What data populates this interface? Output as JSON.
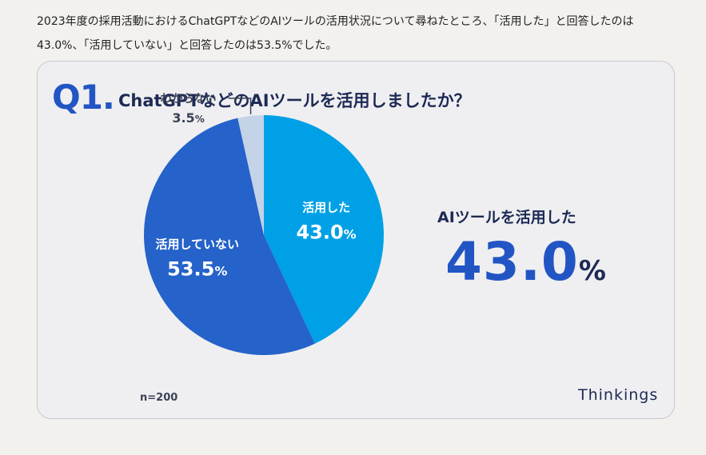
{
  "intro_text": "2023年度の採用活動におけるChatGPTなどのAIツールの活用状況について尋ねたところ、「活用した」と回答したのは43.0%、「活用していない」と回答したのは53.5%でした。",
  "question": {
    "number": "Q1.",
    "text": "ChatGPTなどのAIツールを活用しましたか？"
  },
  "highlight": {
    "label": "AIツールを活用した",
    "value": "43.0",
    "unit": "%"
  },
  "sample": "n=200",
  "brand": "Thinkings",
  "colors": {
    "used": "#00a0e6",
    "not_used": "#2562c9",
    "unknown": "#c5d3e8",
    "accent": "#2255c4",
    "navy": "#1d2a55"
  },
  "chart_data": {
    "type": "pie",
    "title": "ChatGPTなどのAIツールを活用しましたか？",
    "slices": [
      {
        "label": "活用した",
        "value": 43.0,
        "display": "43.0",
        "color": "#00a0e6"
      },
      {
        "label": "活用していない",
        "value": 53.5,
        "display": "53.5",
        "color": "#2562c9"
      },
      {
        "label": "わからない",
        "value": 3.5,
        "display": "3.5",
        "color": "#c5d3e8"
      }
    ],
    "unit": "%",
    "start": "top",
    "direction": "clockwise"
  }
}
